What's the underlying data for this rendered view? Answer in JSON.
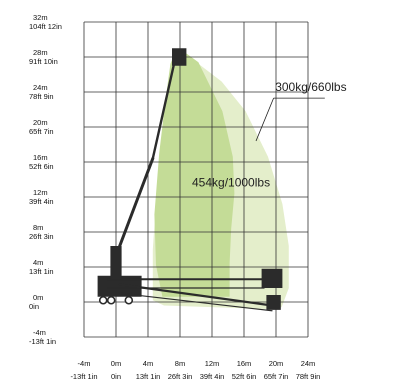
{
  "chart_data": {
    "type": "area",
    "title": "",
    "xlabel": "",
    "ylabel": "",
    "xlim": [
      -4,
      24
    ],
    "ylim": [
      -4,
      32
    ],
    "grid": true,
    "y_ticks": [
      {
        "value": 32,
        "metric": "32m",
        "imperial": "104ft 12in"
      },
      {
        "value": 28,
        "metric": "28m",
        "imperial": "91ft 10in"
      },
      {
        "value": 24,
        "metric": "24m",
        "imperial": "78ft 9in"
      },
      {
        "value": 20,
        "metric": "20m",
        "imperial": "65ft 7in"
      },
      {
        "value": 16,
        "metric": "16m",
        "imperial": "52ft 6in"
      },
      {
        "value": 12,
        "metric": "12m",
        "imperial": "39ft 4in"
      },
      {
        "value": 8,
        "metric": "8m",
        "imperial": "26ft 3in"
      },
      {
        "value": 4,
        "metric": "4m",
        "imperial": "13ft 1in"
      },
      {
        "value": 0,
        "metric": "0m",
        "imperial": "0in"
      },
      {
        "value": -4,
        "metric": "-4m",
        "imperial": "-13ft 1in"
      }
    ],
    "x_ticks": [
      {
        "value": -4,
        "metric": "-4m",
        "imperial": "-13ft 1in"
      },
      {
        "value": 0,
        "metric": "0m",
        "imperial": "0in"
      },
      {
        "value": 4,
        "metric": "4m",
        "imperial": "13ft 1in"
      },
      {
        "value": 8,
        "metric": "8m",
        "imperial": "26ft 3in"
      },
      {
        "value": 12,
        "metric": "12m",
        "imperial": "39ft 4in"
      },
      {
        "value": 16,
        "metric": "16m",
        "imperial": "52ft 6in"
      },
      {
        "value": 20,
        "metric": "20m",
        "imperial": "65ft 7in"
      },
      {
        "value": 24,
        "metric": "24m",
        "imperial": "78ft 9in"
      }
    ],
    "zones": [
      {
        "label": "300kg/660lbs",
        "color": "#e4eecb",
        "boundary": [
          [
            7.4,
            27.8
          ],
          [
            10.2,
            27.3
          ],
          [
            13.2,
            25.2
          ],
          [
            16.2,
            21.8
          ],
          [
            19.0,
            16.6
          ],
          [
            20.8,
            11.2
          ],
          [
            21.6,
            6.4
          ],
          [
            21.6,
            1.6
          ],
          [
            20.7,
            -0.6
          ],
          [
            19.0,
            -0.8
          ],
          [
            6.0,
            -0.4
          ],
          [
            4.6,
            0.2
          ],
          [
            4.6,
            6
          ],
          [
            5.2,
            14
          ],
          [
            6.0,
            21
          ],
          [
            6.9,
            26.5
          ]
        ]
      },
      {
        "label": "454kg/1000lbs",
        "color": "#c4dc97",
        "boundary": [
          [
            7.3,
            28.4
          ],
          [
            8.8,
            28.4
          ],
          [
            10.3,
            27.4
          ],
          [
            13.3,
            21.8
          ],
          [
            14.6,
            16.6
          ],
          [
            14.8,
            12.4
          ],
          [
            14.4,
            8.4
          ],
          [
            14.2,
            4.4
          ],
          [
            14.2,
            0.6
          ],
          [
            5.8,
            0.6
          ],
          [
            5.0,
            4.2
          ],
          [
            4.8,
            10
          ],
          [
            5.4,
            17
          ],
          [
            6.2,
            23.2
          ],
          [
            6.8,
            27.2
          ]
        ]
      }
    ]
  },
  "colors": {
    "grid": "#333333",
    "outer_zone": "#e4eecb",
    "inner_zone": "#c4dc97",
    "machine": "#2b2b2b"
  }
}
